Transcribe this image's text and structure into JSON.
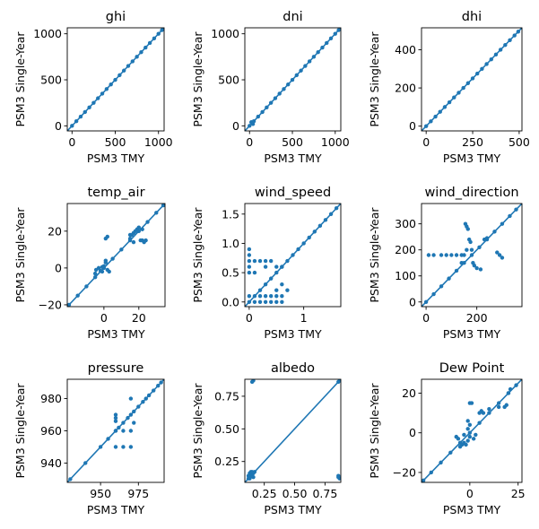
{
  "chart_data": [
    {
      "type": "scatter",
      "title": "ghi",
      "xlabel": "PSM3 TMY",
      "ylabel": "PSM3 Single-Year",
      "xlim": [
        -55,
        1065
      ],
      "ylim": [
        -55,
        1065
      ],
      "xticks": [
        0,
        500,
        1000
      ],
      "yticks": [
        0,
        500,
        1000
      ],
      "xtick_labels": [
        "0",
        "500",
        "1000"
      ],
      "ytick_labels": [
        "0",
        "500",
        "1000"
      ],
      "identity_line": true,
      "points": [
        [
          0,
          0
        ],
        [
          50,
          50
        ],
        [
          100,
          100
        ],
        [
          150,
          150
        ],
        [
          200,
          200
        ],
        [
          250,
          250
        ],
        [
          300,
          300
        ],
        [
          350,
          350
        ],
        [
          400,
          400
        ],
        [
          450,
          450
        ],
        [
          500,
          500
        ],
        [
          550,
          550
        ],
        [
          600,
          600
        ],
        [
          650,
          650
        ],
        [
          700,
          700
        ],
        [
          750,
          750
        ],
        [
          800,
          800
        ],
        [
          850,
          850
        ],
        [
          900,
          900
        ],
        [
          950,
          950
        ],
        [
          1000,
          1000
        ],
        [
          1040,
          1040
        ]
      ],
      "grid": false
    },
    {
      "type": "scatter",
      "title": "dni",
      "xlabel": "PSM3 TMY",
      "ylabel": "PSM3 Single-Year",
      "xlim": [
        -55,
        1065
      ],
      "ylim": [
        -55,
        1065
      ],
      "xticks": [
        0,
        500,
        1000
      ],
      "yticks": [
        0,
        500,
        1000
      ],
      "xtick_labels": [
        "0",
        "500",
        "1000"
      ],
      "ytick_labels": [
        "0",
        "500",
        "1000"
      ],
      "identity_line": true,
      "points": [
        [
          0,
          0
        ],
        [
          20,
          40
        ],
        [
          40,
          20
        ],
        [
          50,
          50
        ],
        [
          100,
          100
        ],
        [
          150,
          150
        ],
        [
          200,
          200
        ],
        [
          250,
          250
        ],
        [
          300,
          300
        ],
        [
          350,
          350
        ],
        [
          400,
          400
        ],
        [
          450,
          450
        ],
        [
          500,
          500
        ],
        [
          550,
          550
        ],
        [
          600,
          600
        ],
        [
          650,
          650
        ],
        [
          700,
          700
        ],
        [
          750,
          750
        ],
        [
          800,
          800
        ],
        [
          850,
          850
        ],
        [
          900,
          900
        ],
        [
          950,
          950
        ],
        [
          1000,
          1000
        ],
        [
          1040,
          1040
        ]
      ],
      "grid": false
    },
    {
      "type": "scatter",
      "title": "dhi",
      "xlabel": "PSM3 TMY",
      "ylabel": "PSM3 Single-Year",
      "xlim": [
        -25,
        515
      ],
      "ylim": [
        -25,
        515
      ],
      "xticks": [
        0,
        250,
        500
      ],
      "yticks": [
        0,
        200,
        400
      ],
      "xtick_labels": [
        "0",
        "250",
        "500"
      ],
      "ytick_labels": [
        "0",
        "200",
        "400"
      ],
      "identity_line": true,
      "points": [
        [
          0,
          0
        ],
        [
          25,
          25
        ],
        [
          50,
          50
        ],
        [
          75,
          75
        ],
        [
          100,
          100
        ],
        [
          125,
          125
        ],
        [
          150,
          150
        ],
        [
          175,
          175
        ],
        [
          200,
          200
        ],
        [
          225,
          225
        ],
        [
          250,
          250
        ],
        [
          275,
          275
        ],
        [
          300,
          300
        ],
        [
          325,
          325
        ],
        [
          350,
          350
        ],
        [
          375,
          375
        ],
        [
          400,
          400
        ],
        [
          425,
          425
        ],
        [
          450,
          450
        ],
        [
          475,
          475
        ],
        [
          495,
          495
        ]
      ],
      "grid": false
    },
    {
      "type": "scatter",
      "title": "temp_air",
      "xlabel": "PSM3 TMY",
      "ylabel": "PSM3 Single-Year",
      "xlim": [
        -21,
        35
      ],
      "ylim": [
        -21,
        35
      ],
      "xticks": [
        0,
        20
      ],
      "yticks": [
        -20,
        0,
        20
      ],
      "xtick_labels": [
        "0",
        "20"
      ],
      "ytick_labels": [
        "−20",
        "0",
        "20"
      ],
      "identity_line": true,
      "points": [
        [
          -20,
          -20
        ],
        [
          -15,
          -15
        ],
        [
          -10,
          -10
        ],
        [
          -5,
          -5
        ],
        [
          0,
          0
        ],
        [
          5,
          5
        ],
        [
          10,
          10
        ],
        [
          15,
          15
        ],
        [
          20,
          20
        ],
        [
          25,
          25
        ],
        [
          30,
          30
        ],
        [
          34,
          34
        ],
        [
          -5,
          -3
        ],
        [
          -4.5,
          -1
        ],
        [
          -3,
          0
        ],
        [
          -2,
          -1.5
        ],
        [
          -1,
          0.5
        ],
        [
          0,
          1
        ],
        [
          1,
          16
        ],
        [
          2,
          17
        ],
        [
          1,
          3
        ],
        [
          2,
          -1
        ],
        [
          3,
          -2
        ],
        [
          -1,
          -2
        ],
        [
          1,
          4
        ],
        [
          15,
          16
        ],
        [
          16,
          18
        ],
        [
          17,
          19
        ],
        [
          18,
          20
        ],
        [
          19,
          21
        ],
        [
          20,
          22
        ],
        [
          22,
          21
        ],
        [
          21,
          15
        ],
        [
          22,
          15
        ],
        [
          15,
          18
        ],
        [
          17,
          14
        ],
        [
          23,
          14
        ],
        [
          24,
          15
        ]
      ],
      "grid": false
    },
    {
      "type": "scatter",
      "title": "wind_speed",
      "xlabel": "PSM3 TMY",
      "ylabel": "PSM3 Single-Year",
      "xlim": [
        -0.08,
        1.68
      ],
      "ylim": [
        -0.08,
        1.68
      ],
      "xticks": [
        0,
        1
      ],
      "yticks": [
        0.0,
        0.5,
        1.0,
        1.5
      ],
      "xtick_labels": [
        "0",
        "1"
      ],
      "ytick_labels": [
        "0.0",
        "0.5",
        "1.0",
        "1.5"
      ],
      "identity_line": true,
      "points": [
        [
          0,
          0
        ],
        [
          0.1,
          0.1
        ],
        [
          0.2,
          0.2
        ],
        [
          0.3,
          0.3
        ],
        [
          0.4,
          0.4
        ],
        [
          0.5,
          0.5
        ],
        [
          0.6,
          0.6
        ],
        [
          0.7,
          0.7
        ],
        [
          0.8,
          0.8
        ],
        [
          0.9,
          0.9
        ],
        [
          1.0,
          1.0
        ],
        [
          1.1,
          1.1
        ],
        [
          1.2,
          1.2
        ],
        [
          1.3,
          1.3
        ],
        [
          1.4,
          1.4
        ],
        [
          1.5,
          1.5
        ],
        [
          1.6,
          1.6
        ],
        [
          0,
          0.9
        ],
        [
          0,
          0.8
        ],
        [
          0,
          0.7
        ],
        [
          0,
          0.6
        ],
        [
          0,
          0.5
        ],
        [
          0,
          0.1
        ],
        [
          0.1,
          0.7
        ],
        [
          0.2,
          0.7
        ],
        [
          0.3,
          0.7
        ],
        [
          0.4,
          0.7
        ],
        [
          0.5,
          0.6
        ],
        [
          0.6,
          0.6
        ],
        [
          0.6,
          0.3
        ],
        [
          0.5,
          0.2
        ],
        [
          0.5,
          0.1
        ],
        [
          0.4,
          0.1
        ],
        [
          0.3,
          0.1
        ],
        [
          0.2,
          0.1
        ],
        [
          0.1,
          0
        ],
        [
          0.2,
          0
        ],
        [
          0.3,
          0
        ],
        [
          0.4,
          0
        ],
        [
          0.5,
          0
        ],
        [
          0.6,
          0
        ],
        [
          0.6,
          0.1
        ],
        [
          0.7,
          0.2
        ],
        [
          0.1,
          0.5
        ],
        [
          0.3,
          0.6
        ]
      ],
      "grid": false
    },
    {
      "type": "scatter",
      "title": "wind_direction",
      "xlabel": "PSM3 TMY",
      "ylabel": "PSM3 Single-Year",
      "xlim": [
        -18,
        378
      ],
      "ylim": [
        -18,
        378
      ],
      "xticks": [
        0,
        200
      ],
      "yticks": [
        0,
        100,
        200,
        300
      ],
      "xtick_labels": [
        "0",
        "200"
      ],
      "ytick_labels": [
        "0",
        "100",
        "200",
        "300"
      ],
      "identity_line": true,
      "points": [
        [
          0,
          0
        ],
        [
          30,
          30
        ],
        [
          60,
          60
        ],
        [
          90,
          90
        ],
        [
          120,
          120
        ],
        [
          150,
          150
        ],
        [
          180,
          180
        ],
        [
          210,
          210
        ],
        [
          240,
          240
        ],
        [
          270,
          270
        ],
        [
          300,
          300
        ],
        [
          330,
          330
        ],
        [
          355,
          355
        ],
        [
          10,
          180
        ],
        [
          30,
          180
        ],
        [
          60,
          180
        ],
        [
          80,
          180
        ],
        [
          100,
          180
        ],
        [
          120,
          180
        ],
        [
          140,
          180
        ],
        [
          150,
          180
        ],
        [
          155,
          300
        ],
        [
          160,
          290
        ],
        [
          165,
          280
        ],
        [
          170,
          240
        ],
        [
          175,
          230
        ],
        [
          180,
          200
        ],
        [
          185,
          150
        ],
        [
          190,
          140
        ],
        [
          200,
          130
        ],
        [
          215,
          125
        ],
        [
          230,
          240
        ],
        [
          240,
          245
        ],
        [
          280,
          190
        ],
        [
          290,
          180
        ],
        [
          300,
          170
        ],
        [
          140,
          150
        ],
        [
          160,
          200
        ]
      ],
      "grid": false
    },
    {
      "type": "scatter",
      "title": "pressure",
      "xlabel": "PSM3 TMY",
      "ylabel": "PSM3 Single-Year",
      "xlim": [
        928,
        992
      ],
      "ylim": [
        928,
        992
      ],
      "xticks": [
        950,
        975
      ],
      "yticks": [
        940,
        960,
        980
      ],
      "xtick_labels": [
        "950",
        "975"
      ],
      "ytick_labels": [
        "940",
        "960",
        "980"
      ],
      "identity_line": true,
      "points": [
        [
          930,
          930
        ],
        [
          940,
          940
        ],
        [
          950,
          950
        ],
        [
          955,
          955
        ],
        [
          960,
          960
        ],
        [
          962,
          962
        ],
        [
          965,
          965
        ],
        [
          968,
          968
        ],
        [
          970,
          970
        ],
        [
          972,
          972
        ],
        [
          975,
          975
        ],
        [
          978,
          978
        ],
        [
          980,
          980
        ],
        [
          982,
          982
        ],
        [
          985,
          985
        ],
        [
          988,
          988
        ],
        [
          990,
          990
        ],
        [
          960,
          970
        ],
        [
          960,
          968
        ],
        [
          960,
          966
        ],
        [
          960,
          960
        ],
        [
          960,
          950
        ],
        [
          965,
          960
        ],
        [
          965,
          950
        ],
        [
          970,
          950
        ],
        [
          970,
          960
        ],
        [
          970,
          980
        ],
        [
          972,
          965
        ]
      ],
      "grid": false
    },
    {
      "type": "scatter",
      "title": "albedo",
      "xlabel": "PSM3 TMY",
      "ylabel": "PSM3 Single-Year",
      "xlim": [
        0.09,
        0.88
      ],
      "ylim": [
        0.09,
        0.88
      ],
      "xticks": [
        0.25,
        0.5,
        0.75
      ],
      "yticks": [
        0.25,
        0.5,
        0.75
      ],
      "xtick_labels": [
        "0.25",
        "0.50",
        "0.75"
      ],
      "ytick_labels": [
        "0.25",
        "0.50",
        "0.75"
      ],
      "identity_line": true,
      "points": [
        [
          0.12,
          0.12
        ],
        [
          0.13,
          0.13
        ],
        [
          0.14,
          0.14
        ],
        [
          0.15,
          0.15
        ],
        [
          0.16,
          0.16
        ],
        [
          0.17,
          0.17
        ],
        [
          0.12,
          0.14
        ],
        [
          0.13,
          0.16
        ],
        [
          0.14,
          0.17
        ],
        [
          0.15,
          0.17
        ],
        [
          0.16,
          0.13
        ],
        [
          0.13,
          0.12
        ],
        [
          0.86,
          0.86
        ],
        [
          0.87,
          0.87
        ],
        [
          0.15,
          0.86
        ],
        [
          0.16,
          0.87
        ],
        [
          0.86,
          0.13
        ],
        [
          0.86,
          0.14
        ],
        [
          0.87,
          0.12
        ]
      ],
      "grid": false
    },
    {
      "type": "scatter",
      "title": "Dew Point",
      "xlabel": "PSM3 TMY",
      "ylabel": "PSM3 Single-Year",
      "xlim": [
        -25,
        27
      ],
      "ylim": [
        -25,
        27
      ],
      "xticks": [
        0,
        25
      ],
      "yticks": [
        -20,
        0,
        20
      ],
      "xtick_labels": [
        "0",
        "25"
      ],
      "ytick_labels": [
        "−20",
        "0",
        "20"
      ],
      "identity_line": true,
      "points": [
        [
          -24,
          -24
        ],
        [
          -20,
          -20
        ],
        [
          -15,
          -15
        ],
        [
          -10,
          -10
        ],
        [
          -5,
          -5
        ],
        [
          0,
          0
        ],
        [
          5,
          5
        ],
        [
          10,
          10
        ],
        [
          15,
          15
        ],
        [
          20,
          20
        ],
        [
          24,
          24
        ],
        [
          -6,
          -3
        ],
        [
          -7,
          -2
        ],
        [
          -4,
          -6
        ],
        [
          -3,
          -5
        ],
        [
          -2,
          -6
        ],
        [
          -1,
          -4
        ],
        [
          -1,
          2
        ],
        [
          0,
          4
        ],
        [
          0,
          15
        ],
        [
          1,
          15
        ],
        [
          -1,
          6
        ],
        [
          0,
          -2
        ],
        [
          2,
          -3
        ],
        [
          3,
          -1
        ],
        [
          5,
          10
        ],
        [
          6,
          11
        ],
        [
          7,
          10
        ],
        [
          10,
          12
        ],
        [
          15,
          13
        ],
        [
          18,
          13
        ],
        [
          19,
          14
        ],
        [
          20,
          20
        ],
        [
          21,
          22
        ],
        [
          -5,
          -7
        ],
        [
          -3,
          -1
        ]
      ],
      "grid": false
    }
  ]
}
